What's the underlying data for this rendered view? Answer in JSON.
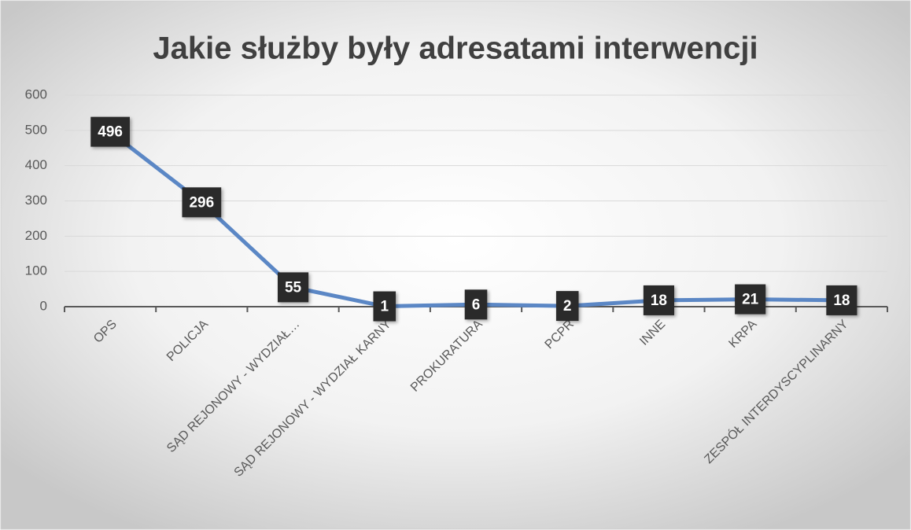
{
  "chart_data": {
    "type": "line",
    "title": "Jakie służby były adresatami interwencji",
    "categories": [
      "OPS",
      "POLICJA",
      "SĄD REJONOWY - WYDZIAŁ…",
      "SĄD REJONOWY - WYDZIAŁ KARNY",
      "PROKURATURA",
      "PCPR",
      "INNE",
      "KRPA",
      "ZESPÓŁ INTERDYSCYPLINARNY"
    ],
    "values": [
      496,
      296,
      55,
      1,
      6,
      2,
      18,
      21,
      18
    ],
    "color": "#5b87c5",
    "ylim": [
      0,
      600
    ],
    "yticks": [
      0,
      100,
      200,
      300,
      400,
      500,
      600
    ],
    "grid": true
  }
}
